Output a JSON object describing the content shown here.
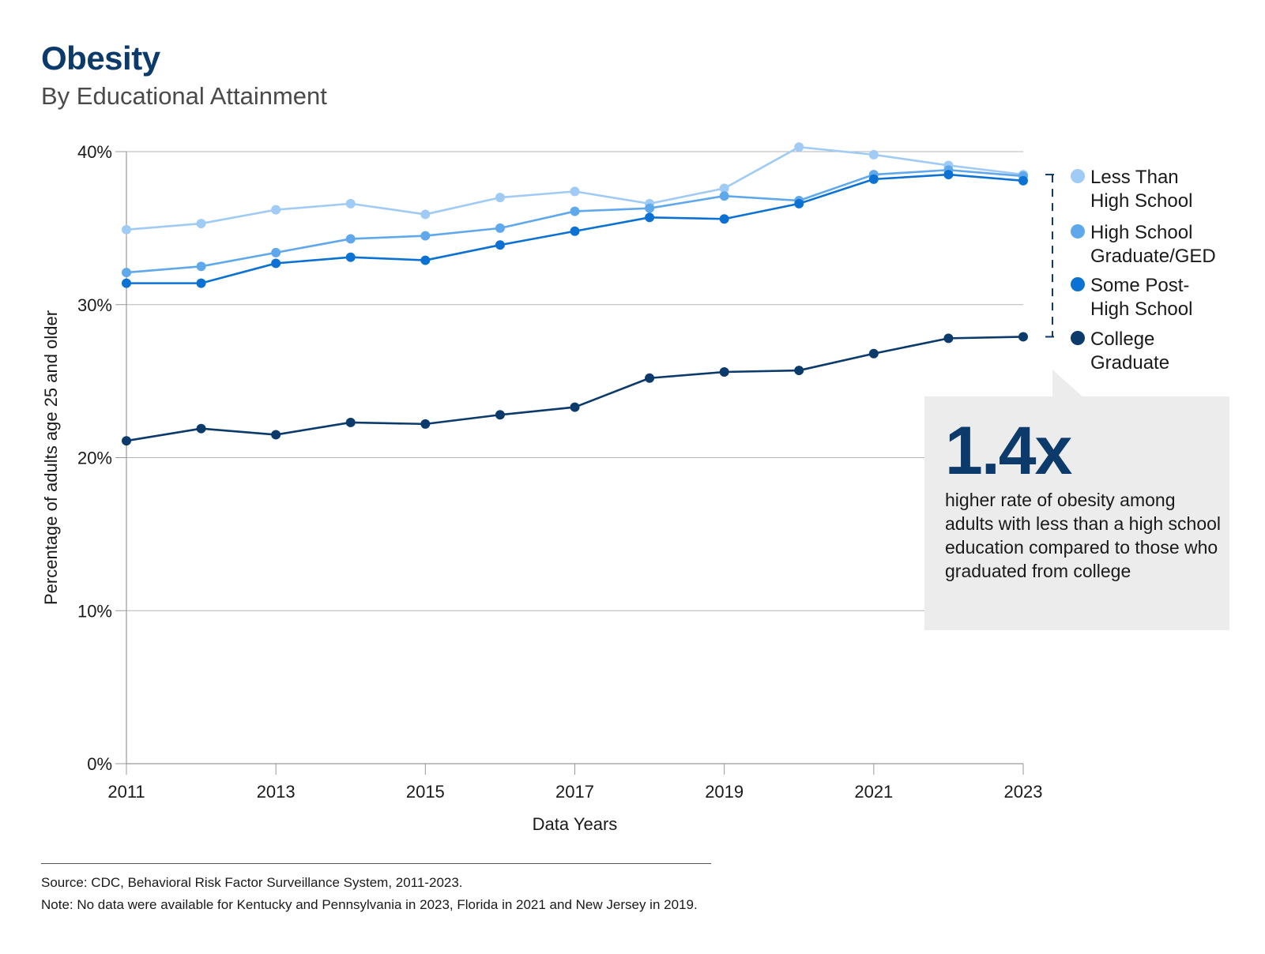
{
  "chart_data": {
    "type": "line",
    "title": "Obesity",
    "subtitle": "By Educational Attainment",
    "xlabel": "Data Years",
    "ylabel": "Percentage of adults age 25 and older",
    "ylim": [
      0,
      40
    ],
    "yticks": [
      0,
      10,
      20,
      30,
      40
    ],
    "ytick_labels": [
      "0%",
      "10%",
      "20%",
      "30%",
      "40%"
    ],
    "x": [
      2011,
      2012,
      2013,
      2014,
      2015,
      2016,
      2017,
      2018,
      2019,
      2020,
      2021,
      2022,
      2023
    ],
    "xtick_labels": [
      "2011",
      "2013",
      "2015",
      "2017",
      "2019",
      "2021",
      "2023"
    ],
    "grid": true,
    "legend_position": "right",
    "series": [
      {
        "name": "Less Than High School",
        "legend_lines": [
          "Less Than",
          "High School"
        ],
        "color": "#9fcbf5",
        "values": [
          34.9,
          35.3,
          36.2,
          36.6,
          35.9,
          37.0,
          37.4,
          36.6,
          37.6,
          40.3,
          39.8,
          39.1,
          38.5
        ]
      },
      {
        "name": "High School Graduate/GED",
        "legend_lines": [
          "High School",
          "Graduate/GED"
        ],
        "color": "#5fa8ec",
        "values": [
          32.1,
          32.5,
          33.4,
          34.3,
          34.5,
          35.0,
          36.1,
          36.3,
          37.1,
          36.8,
          38.5,
          38.8,
          38.4
        ]
      },
      {
        "name": "Some Post-High School",
        "legend_lines": [
          "Some Post-",
          "High School"
        ],
        "color": "#0b72d3",
        "values": [
          31.4,
          31.4,
          32.7,
          33.1,
          32.9,
          33.9,
          34.8,
          35.7,
          35.6,
          36.6,
          38.2,
          38.5,
          38.1
        ]
      },
      {
        "name": "College Graduate",
        "legend_lines": [
          "College",
          "Graduate"
        ],
        "color": "#0b3a6b",
        "values": [
          21.1,
          21.9,
          21.5,
          22.3,
          22.2,
          22.8,
          23.3,
          25.2,
          25.6,
          25.7,
          26.8,
          27.8,
          27.9
        ]
      }
    ]
  },
  "callout": {
    "value": "1.4x",
    "text": "higher rate of obesity among adults with less than a high school education compared to those who graduated from college"
  },
  "footer": {
    "source": "Source: CDC, Behavioral Risk Factor Surveillance System, 2011-2023.",
    "note": "Note: No data were available for Kentucky and Pennsylvania in 2023, Florida in 2021 and New Jersey in 2019."
  }
}
